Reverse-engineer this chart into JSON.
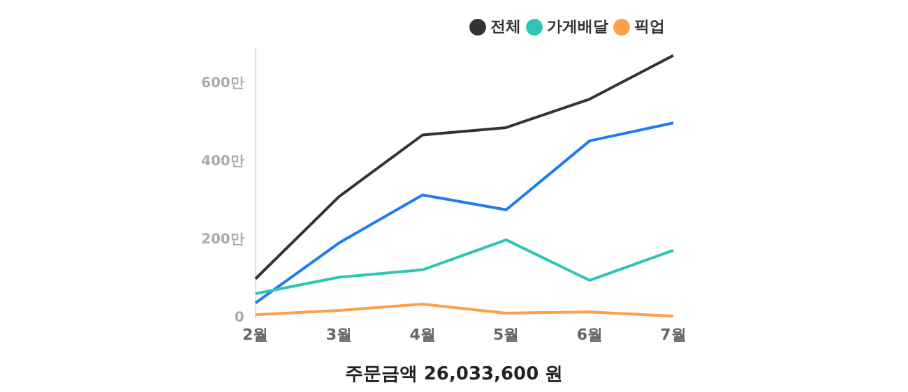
{
  "chart_data": {
    "type": "line",
    "categories": [
      "2월",
      "3월",
      "4월",
      "5월",
      "6월",
      "7월"
    ],
    "series": [
      {
        "name": "전체",
        "color": "#333333",
        "values": [
          100,
          311,
          469,
          488,
          561,
          673
        ]
      },
      {
        "name": "가게배달",
        "color": "#2ec4b6",
        "values": [
          62,
          104,
          123,
          200,
          96,
          173
        ]
      },
      {
        "name": "픽업",
        "color": "#ff9f4a",
        "values": [
          8,
          19,
          35,
          12,
          15,
          4
        ]
      },
      {
        "color": "#1f7bf2",
        "values": [
          38,
          192,
          315,
          277,
          454,
          500
        ]
      }
    ],
    "ylim": [
      0,
      690
    ],
    "yticks": [
      0,
      {
        "value": 200,
        "label": "200만"
      },
      {
        "value": 400,
        "label": "400만"
      },
      {
        "value": 600,
        "label": "600만"
      }
    ],
    "grid": false,
    "legend": "top right",
    "marker": "none",
    "line_style": "solid",
    "annotations": [
      "주문금액 26,033,600 원"
    ]
  }
}
